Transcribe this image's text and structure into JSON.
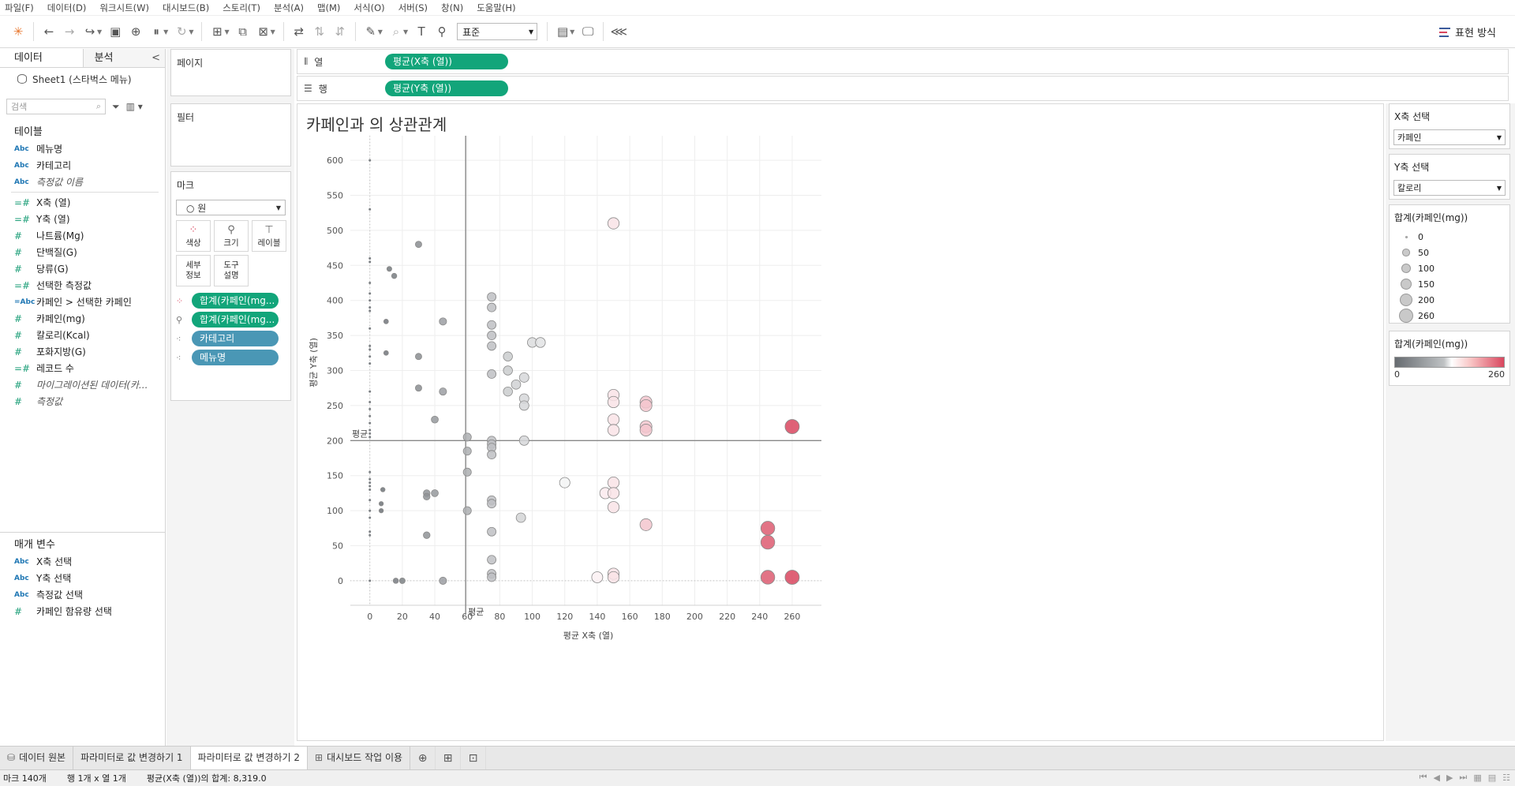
{
  "menu": [
    "파일(F)",
    "데이터(D)",
    "워크시트(W)",
    "대시보드(B)",
    "스토리(T)",
    "분석(A)",
    "맵(M)",
    "서식(O)",
    "서버(S)",
    "창(N)",
    "도움말(H)"
  ],
  "toolbar": {
    "fit": "표준",
    "show_me": "표현 방식"
  },
  "data_pane": {
    "tab_data": "데이터",
    "tab_analysis": "분석",
    "datasource": "Sheet1 (스타벅스 메뉴)",
    "search_placeholder": "검색",
    "tables_title": "테이블",
    "dimensions": [
      {
        "type": "Abc",
        "label": "메뉴명"
      },
      {
        "type": "Abc",
        "label": "카테고리"
      },
      {
        "type": "Abc",
        "label": "측정값 이름"
      }
    ],
    "measures": [
      {
        "type": "=#",
        "label": "X축 (열)"
      },
      {
        "type": "=#",
        "label": "Y축 (열)"
      },
      {
        "type": "#",
        "label": "나트륨(Mg)"
      },
      {
        "type": "#",
        "label": "단백질(G)"
      },
      {
        "type": "#",
        "label": "당류(G)"
      },
      {
        "type": "=#",
        "label": "선택한 측정값"
      },
      {
        "type": "=Abc",
        "label": "카페인 > 선택한 카페인"
      },
      {
        "type": "#",
        "label": "카페인(mg)"
      },
      {
        "type": "#",
        "label": "칼로리(Kcal)"
      },
      {
        "type": "#",
        "label": "포화지방(G)"
      },
      {
        "type": "=#",
        "label": "레코드 수"
      },
      {
        "type": "#",
        "label": "마이그레이션된 데이터(카..."
      },
      {
        "type": "#",
        "label": "측정값"
      }
    ],
    "params_title": "매개 변수",
    "params": [
      {
        "type": "Abc",
        "label": "X축 선택"
      },
      {
        "type": "Abc",
        "label": "Y축 선택"
      },
      {
        "type": "Abc",
        "label": "측정값 선택"
      },
      {
        "type": "#",
        "label": "카페인 함유량 선택"
      }
    ]
  },
  "cards": {
    "pages": "페이지",
    "filters": "필터",
    "marks": "마크",
    "mark_type": "원",
    "buttons": {
      "color": "색상",
      "size": "크기",
      "label": "레이블",
      "detail": "세부 정보",
      "tooltip": "도구 설명"
    },
    "pills": [
      {
        "label": "합계(카페인(mg...",
        "kind": "green"
      },
      {
        "label": "합계(카페인(mg...",
        "kind": "green"
      },
      {
        "label": "카테고리",
        "kind": "blue"
      },
      {
        "label": "메뉴명",
        "kind": "blue"
      }
    ]
  },
  "shelves": {
    "columns_label": "열",
    "columns_pill": "평균(X축 (열))",
    "rows_label": "행",
    "rows_pill": "평균(Y축 (열))"
  },
  "view": {
    "title": "카페인과 의 상관관계"
  },
  "chart_data": {
    "type": "scatter",
    "xlabel": "평균 X축 (열)",
    "ylabel": "평균 Y축 (열)",
    "xlim": [
      -12,
      278
    ],
    "ylim": [
      -35,
      635
    ],
    "xticks": [
      0,
      20,
      40,
      60,
      80,
      100,
      120,
      140,
      160,
      180,
      200,
      220,
      240,
      260
    ],
    "yticks": [
      0,
      50,
      100,
      150,
      200,
      250,
      300,
      350,
      400,
      450,
      500,
      550,
      600
    ],
    "reference_lines": [
      {
        "axis": "x",
        "value": 59,
        "label": "평균"
      },
      {
        "axis": "y",
        "value": 200,
        "label": "평균"
      }
    ],
    "color_encoding": "caffeine_mg",
    "size_encoding": "caffeine_mg",
    "points": [
      [
        0,
        600
      ],
      [
        0,
        530
      ],
      [
        0,
        460
      ],
      [
        0,
        455
      ],
      [
        0,
        425
      ],
      [
        0,
        410
      ],
      [
        0,
        400
      ],
      [
        0,
        390
      ],
      [
        0,
        385
      ],
      [
        0,
        360
      ],
      [
        0,
        335
      ],
      [
        0,
        330
      ],
      [
        0,
        320
      ],
      [
        0,
        310
      ],
      [
        0,
        270
      ],
      [
        0,
        255
      ],
      [
        0,
        245
      ],
      [
        0,
        235
      ],
      [
        0,
        225
      ],
      [
        0,
        215
      ],
      [
        0,
        210
      ],
      [
        0,
        205
      ],
      [
        0,
        155
      ],
      [
        0,
        145
      ],
      [
        0,
        140
      ],
      [
        0,
        135
      ],
      [
        0,
        130
      ],
      [
        0,
        115
      ],
      [
        0,
        100
      ],
      [
        0,
        90
      ],
      [
        0,
        70
      ],
      [
        0,
        65
      ],
      [
        0,
        0
      ],
      [
        12,
        445
      ],
      [
        15,
        435
      ],
      [
        10,
        370
      ],
      [
        10,
        325
      ],
      [
        8,
        130
      ],
      [
        7,
        110
      ],
      [
        7,
        100
      ],
      [
        16,
        0
      ],
      [
        20,
        0
      ],
      [
        30,
        480
      ],
      [
        30,
        320
      ],
      [
        30,
        275
      ],
      [
        35,
        125
      ],
      [
        35,
        120
      ],
      [
        40,
        125
      ],
      [
        35,
        65
      ],
      [
        40,
        230
      ],
      [
        45,
        370
      ],
      [
        45,
        270
      ],
      [
        45,
        0
      ],
      [
        60,
        205
      ],
      [
        60,
        185
      ],
      [
        60,
        155
      ],
      [
        60,
        100
      ],
      [
        75,
        405
      ],
      [
        75,
        390
      ],
      [
        75,
        365
      ],
      [
        75,
        350
      ],
      [
        75,
        335
      ],
      [
        75,
        295
      ],
      [
        75,
        200
      ],
      [
        75,
        195
      ],
      [
        75,
        190
      ],
      [
        75,
        180
      ],
      [
        75,
        115
      ],
      [
        75,
        110
      ],
      [
        75,
        70
      ],
      [
        75,
        30
      ],
      [
        75,
        10
      ],
      [
        75,
        5
      ],
      [
        85,
        320
      ],
      [
        85,
        300
      ],
      [
        85,
        270
      ],
      [
        90,
        280
      ],
      [
        95,
        290
      ],
      [
        95,
        260
      ],
      [
        95,
        250
      ],
      [
        95,
        200
      ],
      [
        93,
        90
      ],
      [
        100,
        340
      ],
      [
        105,
        340
      ],
      [
        120,
        140
      ],
      [
        140,
        5
      ],
      [
        145,
        125
      ],
      [
        150,
        510
      ],
      [
        150,
        265
      ],
      [
        150,
        255
      ],
      [
        150,
        230
      ],
      [
        150,
        215
      ],
      [
        150,
        140
      ],
      [
        150,
        125
      ],
      [
        150,
        105
      ],
      [
        150,
        10
      ],
      [
        150,
        5
      ],
      [
        170,
        255
      ],
      [
        170,
        250
      ],
      [
        170,
        220
      ],
      [
        170,
        215
      ],
      [
        170,
        80
      ],
      [
        245,
        75
      ],
      [
        245,
        55
      ],
      [
        245,
        5
      ],
      [
        260,
        220
      ],
      [
        260,
        5
      ]
    ]
  },
  "legends": {
    "x_title": "X축 선택",
    "x_value": "카페인",
    "y_title": "Y축 선택",
    "y_value": "칼로리",
    "size_title": "합계(카페인(mg))",
    "size_items": [
      {
        "label": "0",
        "value": 0
      },
      {
        "label": "50",
        "value": 50
      },
      {
        "label": "100",
        "value": 100
      },
      {
        "label": "150",
        "value": 150
      },
      {
        "label": "200",
        "value": 200
      },
      {
        "label": "260",
        "value": 260
      }
    ],
    "color_title": "합계(카페인(mg))",
    "color_min": "0",
    "color_max": "260",
    "colors": {
      "low": "#666b70",
      "mid": "#ffffff",
      "high": "#d9475f"
    }
  },
  "sheet_tabs": [
    {
      "label": "데이터 원본",
      "icon": "datasource-icon",
      "active": false
    },
    {
      "label": "파라미터로 값 변경하기 1",
      "icon": "",
      "active": false
    },
    {
      "label": "파라미터로 값 변경하기 2",
      "icon": "",
      "active": true
    },
    {
      "label": "대시보드 작업 이용",
      "icon": "dashboard-icon",
      "active": false
    }
  ],
  "status": {
    "marks": "마크 140개",
    "rows_cols": "행 1개 x 열 1개",
    "sum": "평균(X축 (열))의 합계: 8,319.0"
  }
}
